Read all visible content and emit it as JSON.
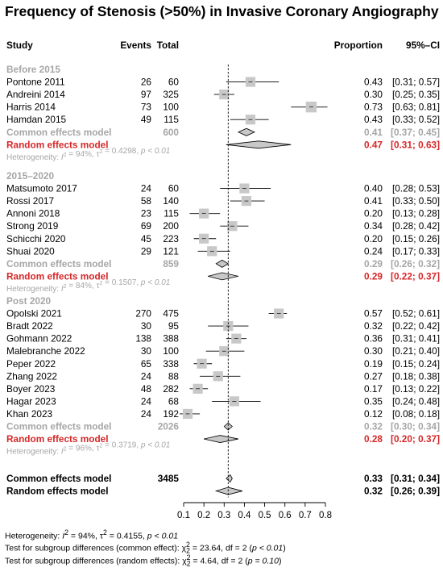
{
  "title": "Frequency of Stenosis (>50%) in Invasive Coronary Angiography",
  "columns": {
    "study": "Study",
    "events": "Events",
    "total": "Total",
    "proportion": "Proportion",
    "ci": "95%–CI"
  },
  "colors": {
    "text": "#000000",
    "subgroup_header": "#a6a6a6",
    "subgroup_common": "#a6a6a6",
    "subgroup_random": "#d62728",
    "box": "#c8c8c8",
    "diamond": "#c8c8c8"
  },
  "chart_data": {
    "type": "forest",
    "x_axis": {
      "range": [
        0.1,
        0.8
      ],
      "ticks": [
        "0.1",
        "0.2",
        "0.3",
        "0.4",
        "0.5",
        "0.6",
        "0.7",
        "0.8"
      ],
      "reference_line": 0.32
    },
    "subgroups": [
      {
        "name": "Before 2015",
        "studies": [
          {
            "study": "Pontone 2011",
            "events": "26",
            "total": "60",
            "proportion": "0.43",
            "ci": "[0.31; 0.57]",
            "p": 0.43,
            "lo": 0.31,
            "hi": 0.57,
            "weight": 0.6
          },
          {
            "study": "Andreini 2014",
            "events": "97",
            "total": "325",
            "proportion": "0.30",
            "ci": "[0.25; 0.35]",
            "p": 0.3,
            "lo": 0.25,
            "hi": 0.35,
            "weight": 0.6
          },
          {
            "study": "Harris 2014",
            "events": "73",
            "total": "100",
            "proportion": "0.73",
            "ci": "[0.63; 0.81]",
            "p": 0.73,
            "lo": 0.63,
            "hi": 0.81,
            "weight": 0.7
          },
          {
            "study": "Hamdan 2015",
            "events": "49",
            "total": "115",
            "proportion": "0.43",
            "ci": "[0.33; 0.52]",
            "p": 0.43,
            "lo": 0.33,
            "hi": 0.52,
            "weight": 0.6
          }
        ],
        "common": {
          "label": "Common effects model",
          "total": "600",
          "proportion": "0.41",
          "ci": "[0.37; 0.45]",
          "p": 0.41,
          "lo": 0.37,
          "hi": 0.45
        },
        "random": {
          "label": "Random effects model",
          "proportion": "0.47",
          "ci": "[0.31; 0.63]",
          "p": 0.47,
          "lo": 0.31,
          "hi": 0.63
        },
        "heterogeneity": {
          "i2": "94%",
          "tau2": "0.4298",
          "p": "p < 0.01"
        }
      },
      {
        "name": "2015–2020",
        "studies": [
          {
            "study": "Matsumoto 2017",
            "events": "24",
            "total": "60",
            "proportion": "0.40",
            "ci": "[0.28; 0.53]",
            "p": 0.4,
            "lo": 0.28,
            "hi": 0.53,
            "weight": 0.6
          },
          {
            "study": "Rossi 2017",
            "events": "58",
            "total": "140",
            "proportion": "0.41",
            "ci": "[0.33; 0.50]",
            "p": 0.41,
            "lo": 0.33,
            "hi": 0.5,
            "weight": 0.6
          },
          {
            "study": "Annoni 2018",
            "events": "23",
            "total": "115",
            "proportion": "0.20",
            "ci": "[0.13; 0.28]",
            "p": 0.2,
            "lo": 0.13,
            "hi": 0.28,
            "weight": 0.6
          },
          {
            "study": "Strong 2019",
            "events": "69",
            "total": "200",
            "proportion": "0.34",
            "ci": "[0.28; 0.42]",
            "p": 0.34,
            "lo": 0.28,
            "hi": 0.42,
            "weight": 0.6
          },
          {
            "study": "Schicchi 2020",
            "events": "45",
            "total": "223",
            "proportion": "0.20",
            "ci": "[0.15; 0.26]",
            "p": 0.2,
            "lo": 0.15,
            "hi": 0.26,
            "weight": 0.6
          },
          {
            "study": "Shuai 2020",
            "events": "29",
            "total": "121",
            "proportion": "0.24",
            "ci": "[0.17; 0.33]",
            "p": 0.24,
            "lo": 0.17,
            "hi": 0.33,
            "weight": 0.6
          }
        ],
        "common": {
          "label": "Common effects model",
          "total": "859",
          "proportion": "0.29",
          "ci": "[0.26; 0.32]",
          "p": 0.29,
          "lo": 0.26,
          "hi": 0.32
        },
        "random": {
          "label": "Random effects model",
          "proportion": "0.29",
          "ci": "[0.22; 0.37]",
          "p": 0.29,
          "lo": 0.22,
          "hi": 0.37
        },
        "heterogeneity": {
          "i2": "84%",
          "tau2": "0.1507",
          "p": "p < 0.01"
        }
      },
      {
        "name": "Post 2020",
        "studies": [
          {
            "study": "Opolski 2021",
            "events": "270",
            "total": "475",
            "proportion": "0.57",
            "ci": "[0.52; 0.61]",
            "p": 0.57,
            "lo": 0.52,
            "hi": 0.61,
            "weight": 0.6
          },
          {
            "study": "Bradt 2022",
            "events": "30",
            "total": "95",
            "proportion": "0.32",
            "ci": "[0.22; 0.42]",
            "p": 0.32,
            "lo": 0.22,
            "hi": 0.42,
            "weight": 0.6
          },
          {
            "study": "Gohmann 2022",
            "events": "138",
            "total": "388",
            "proportion": "0.36",
            "ci": "[0.31; 0.41]",
            "p": 0.36,
            "lo": 0.31,
            "hi": 0.41,
            "weight": 0.6
          },
          {
            "study": "Malebranche 2022",
            "events": "30",
            "total": "100",
            "proportion": "0.30",
            "ci": "[0.21; 0.40]",
            "p": 0.3,
            "lo": 0.21,
            "hi": 0.4,
            "weight": 0.6
          },
          {
            "study": "Peper 2022",
            "events": "65",
            "total": "338",
            "proportion": "0.19",
            "ci": "[0.15; 0.24]",
            "p": 0.19,
            "lo": 0.15,
            "hi": 0.24,
            "weight": 0.6
          },
          {
            "study": "Zhang 2022",
            "events": "24",
            "total": "88",
            "proportion": "0.27",
            "ci": "[0.18; 0.38]",
            "p": 0.27,
            "lo": 0.18,
            "hi": 0.38,
            "weight": 0.6
          },
          {
            "study": "Boyer 2023",
            "events": "48",
            "total": "282",
            "proportion": "0.17",
            "ci": "[0.13; 0.22]",
            "p": 0.17,
            "lo": 0.13,
            "hi": 0.22,
            "weight": 0.6
          },
          {
            "study": "Hagar 2023",
            "events": "24",
            "total": "68",
            "proportion": "0.35",
            "ci": "[0.24; 0.48]",
            "p": 0.35,
            "lo": 0.24,
            "hi": 0.48,
            "weight": 0.6
          },
          {
            "study": "Khan 2023",
            "events": "24",
            "total": "192",
            "proportion": "0.12",
            "ci": "[0.08; 0.18]",
            "p": 0.12,
            "lo": 0.08,
            "hi": 0.18,
            "weight": 0.6
          }
        ],
        "common": {
          "label": "Common effects model",
          "total": "2026",
          "proportion": "0.32",
          "ci": "[0.30; 0.34]",
          "p": 0.32,
          "lo": 0.3,
          "hi": 0.34
        },
        "random": {
          "label": "Random effects model",
          "proportion": "0.28",
          "ci": "[0.20; 0.37]",
          "p": 0.28,
          "lo": 0.2,
          "hi": 0.37
        },
        "heterogeneity": {
          "i2": "96%",
          "tau2": "0.3719",
          "p": "p < 0.01"
        }
      }
    ],
    "overall": {
      "common": {
        "label": "Common effects model",
        "total": "3485",
        "proportion": "0.33",
        "ci": "[0.31; 0.34]",
        "p": 0.33,
        "lo": 0.31,
        "hi": 0.34
      },
      "random": {
        "label": "Random effects model",
        "proportion": "0.32",
        "ci": "[0.26; 0.39]",
        "p": 0.32,
        "lo": 0.26,
        "hi": 0.39
      }
    }
  },
  "footnotes": {
    "heterogeneity": {
      "prefix": "Heterogeneity: ",
      "i2": "94%",
      "tau2": "0.4155",
      "p": "p < 0.01"
    },
    "common_test": {
      "prefix": "Test for subgroup differences (common effect): ",
      "chi2": "23.64",
      "rest": ", df = 2 (",
      "p": "p < 0.01",
      "close": ")"
    },
    "random_test": {
      "prefix": "Test for subgroup differences (random effects): ",
      "chi2": "4.64",
      "rest": ", df = 2 (",
      "p": "p = 0.10",
      "close": ")"
    }
  }
}
